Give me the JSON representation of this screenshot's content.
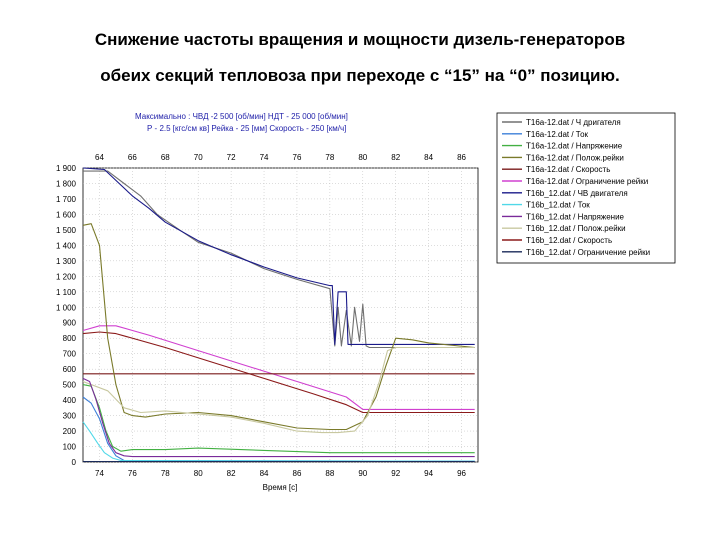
{
  "page": {
    "title_line1": "Снижение частоты вращения и мощности дизель-генераторов",
    "title_line2": "обеих секций тепловоза при  переходе с “15” на “0” позицию."
  },
  "chart_data": {
    "type": "line",
    "header": {
      "line1": "Максимально :  ЧВД -2 500  [об/мин]   НДТ - 25 000 [об/мин]",
      "line2": "Р - 2.5 [кгс/см кв]  Рейка - 25 [мм]  Скорость - 250 [км/ч]"
    },
    "xlabel": "Время [с]",
    "top_ticks": [
      "64",
      "66",
      "68",
      "70",
      "72",
      "74",
      "76",
      "78",
      "80",
      "82",
      "84",
      "86"
    ],
    "bottom_ticks": [
      "74",
      "76",
      "78",
      "80",
      "82",
      "84",
      "86",
      "88",
      "90",
      "92",
      "94",
      "96"
    ],
    "xlim": [
      73,
      97
    ],
    "ylim": [
      0,
      1900
    ],
    "y_ticks": [
      0,
      100,
      200,
      300,
      400,
      500,
      600,
      700,
      800,
      900,
      1000,
      1100,
      1200,
      1300,
      1400,
      1500,
      1600,
      1700,
      1800,
      1900
    ],
    "y_tick_labels": [
      "0",
      "100",
      "200",
      "300",
      "400",
      "500",
      "600",
      "700",
      "800",
      "900",
      "1 000",
      "1 100",
      "1 200",
      "1 300",
      "1 400",
      "1 500",
      "1 600",
      "1 700",
      "1 800",
      "1 900"
    ],
    "grid": true,
    "legend_position": "right",
    "legend": [
      {
        "label": "Т16а-12.dat / Ч дригателя",
        "color": "#707070"
      },
      {
        "label": "Т16а-12.dat / Ток",
        "color": "#3c7fd8"
      },
      {
        "label": "Т16а-12.dat / Напряжение",
        "color": "#43b043"
      },
      {
        "label": "Т16а-12.dat / Полож.рейки",
        "color": "#7a7a2a"
      },
      {
        "label": "Т16а-12.dat / Скорость",
        "color": "#7a1a1a"
      },
      {
        "label": "Т16а-12.dat / Ограничение рейки",
        "color": "#d040d0"
      },
      {
        "label": "Т16b_12.dat / ЧВ двигателя",
        "color": "#1a1a8a"
      },
      {
        "label": "Т16b_12.dat / Ток",
        "color": "#50d8e8"
      },
      {
        "label": "Т16b_12.dat / Напряжение",
        "color": "#7a2a9a"
      },
      {
        "label": "Т16b_12.dat / Полож.рейки",
        "color": "#c8c8a0"
      },
      {
        "label": "Т16b_12.dat / Скорость",
        "color": "#8b1a1a"
      },
      {
        "label": "Т16b_12.dat / Ограничение рейки",
        "color": "#1a2a5a"
      }
    ],
    "series": [
      {
        "name": "Т16а-12.dat / Ч дригателя",
        "color": "#707070",
        "x": [
          73,
          74.5,
          75.5,
          76.5,
          77.5,
          79,
          80,
          82,
          84,
          86,
          88,
          88.3,
          88.5,
          88.7,
          89,
          89.3,
          89.5,
          89.8,
          90,
          90.2,
          90.4,
          91,
          96.8
        ],
        "y": [
          1880,
          1880,
          1800,
          1720,
          1600,
          1490,
          1420,
          1350,
          1250,
          1180,
          1120,
          750,
          1000,
          750,
          980,
          750,
          1000,
          780,
          1020,
          750,
          740,
          740,
          740
        ]
      },
      {
        "name": "Т16b_12.dat / ЧВ двигателя",
        "color": "#1a1a8a",
        "x": [
          73,
          74.3,
          75,
          76,
          77,
          78,
          80,
          82,
          84,
          86,
          88,
          88.15,
          88.3,
          88.5,
          89,
          89.1,
          89.3,
          89.5,
          96.8
        ],
        "y": [
          1900,
          1890,
          1820,
          1720,
          1640,
          1550,
          1430,
          1340,
          1260,
          1190,
          1140,
          1140,
          760,
          1100,
          1100,
          760,
          760,
          760,
          760
        ]
      },
      {
        "name": "Т16а-12.dat / Ограничение рейки",
        "color": "#d040d0",
        "x": [
          73,
          74,
          75,
          77,
          80,
          83,
          86,
          89,
          90,
          96.8
        ],
        "y": [
          850,
          880,
          880,
          820,
          720,
          620,
          520,
          420,
          340,
          340
        ]
      },
      {
        "name": "Т16b_12.dat / Скорость",
        "color": "#8b1a1a",
        "x": [
          73,
          74,
          75,
          78,
          81,
          84,
          87,
          89,
          90,
          96.8
        ],
        "y": [
          830,
          840,
          830,
          740,
          640,
          540,
          440,
          370,
          320,
          320
        ]
      },
      {
        "name": "Т16а-12.dat / Скорость",
        "color": "#7a1a1a",
        "x": [
          73,
          96.8
        ],
        "y": [
          570,
          570
        ]
      },
      {
        "name": "Т16а-12.dat / Полож.рейки",
        "color": "#7a7a2a",
        "x": [
          73,
          73.5,
          74,
          74.5,
          75,
          75.5,
          76,
          76.8,
          78,
          80,
          82,
          84,
          86,
          88,
          89,
          90,
          90.8,
          91.4,
          92,
          93,
          94,
          96.8
        ],
        "y": [
          1530,
          1540,
          1400,
          800,
          500,
          320,
          300,
          290,
          310,
          320,
          300,
          260,
          220,
          210,
          210,
          260,
          420,
          620,
          800,
          790,
          770,
          740
        ]
      },
      {
        "name": "Т16b_12.dat / Полож.рейки",
        "color": "#c8c8a0",
        "x": [
          73,
          74.5,
          75.5,
          76.5,
          78,
          80,
          82,
          84,
          86,
          87.5,
          88.5,
          89.5,
          90.3,
          91,
          91.5,
          92,
          93,
          96.8
        ],
        "y": [
          520,
          460,
          350,
          320,
          330,
          310,
          290,
          250,
          200,
          190,
          190,
          200,
          300,
          520,
          720,
          740,
          740,
          740
        ]
      },
      {
        "name": "Т16а-12.dat / Напряжение",
        "color": "#43b043",
        "x": [
          73,
          73.5,
          74,
          74.4,
          74.8,
          75.3,
          76,
          78,
          80,
          84,
          88,
          92,
          96.8
        ],
        "y": [
          500,
          490,
          350,
          200,
          100,
          70,
          80,
          80,
          90,
          75,
          60,
          60,
          60
        ]
      },
      {
        "name": "Т16b_12.dat / Напряжение",
        "color": "#7a2a9a",
        "x": [
          73,
          73.4,
          73.8,
          74.2,
          74.6,
          75,
          75.5,
          76,
          80,
          96.8
        ],
        "y": [
          540,
          520,
          400,
          250,
          120,
          60,
          40,
          35,
          35,
          35
        ]
      },
      {
        "name": "Т16а-12.dat / Ток",
        "color": "#3c7fd8",
        "x": [
          73,
          73.5,
          74,
          74.5,
          75,
          75.5,
          96.8
        ],
        "y": [
          420,
          380,
          280,
          120,
          40,
          10,
          5
        ]
      },
      {
        "name": "Т16b_12.dat / Ток",
        "color": "#50d8e8",
        "x": [
          73,
          73.4,
          73.9,
          74.3,
          74.8,
          75.3,
          96.8
        ],
        "y": [
          260,
          200,
          120,
          60,
          25,
          10,
          5
        ]
      },
      {
        "name": "Т16b_12.dat / Ограничение рейки",
        "color": "#1a2a5a",
        "x": [
          73,
          96.8
        ],
        "y": [
          3,
          3
        ]
      }
    ]
  }
}
